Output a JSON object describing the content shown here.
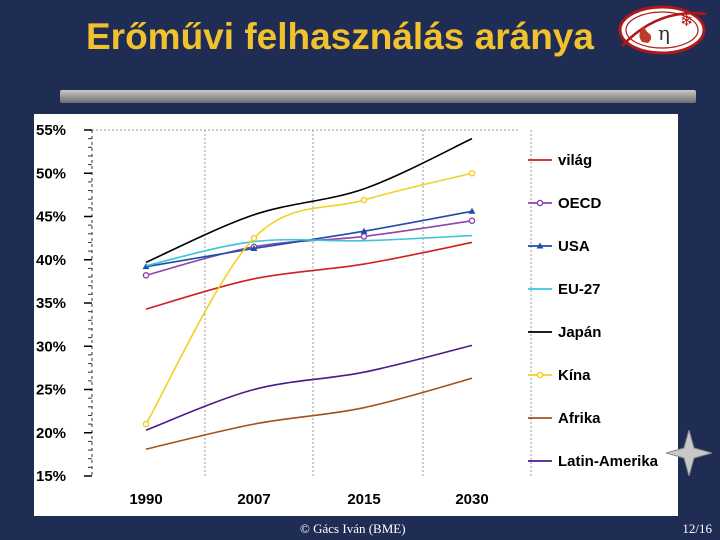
{
  "slide": {
    "title": "Erőművi felhasználás aránya",
    "footer": "© Gács Iván (BME)",
    "page_number": "12/16",
    "logo_glyph_1": "η",
    "logo_glyph_2": "❄"
  },
  "chart_data": {
    "type": "line",
    "x": [
      "1990",
      "2007",
      "2015",
      "2030"
    ],
    "ylim": [
      15,
      55
    ],
    "yticks": [
      "15%",
      "20%",
      "25%",
      "30%",
      "35%",
      "40%",
      "45%",
      "50%",
      "55%"
    ],
    "ytick_values": [
      15,
      20,
      25,
      30,
      35,
      40,
      45,
      50,
      55
    ],
    "grid": true,
    "legend_position": "right",
    "series": [
      {
        "name": "világ",
        "color": "#d21e1e",
        "marker": "none",
        "values": [
          34.3,
          37.8,
          39.5,
          42.0
        ]
      },
      {
        "name": "OECD",
        "color": "#8e44ad",
        "marker": "circle",
        "values": [
          38.2,
          41.5,
          42.7,
          44.5
        ]
      },
      {
        "name": "USA",
        "color": "#1f4ea8",
        "marker": "triangle",
        "values": [
          39.2,
          41.3,
          43.3,
          45.6
        ]
      },
      {
        "name": "EU-27",
        "color": "#3cc4d8",
        "marker": "none",
        "values": [
          39.3,
          42.1,
          42.2,
          42.8
        ]
      },
      {
        "name": "Japán",
        "color": "#000000",
        "marker": "none",
        "values": [
          39.7,
          45.2,
          48.2,
          54.0
        ]
      },
      {
        "name": "Kína",
        "color": "#f2d024",
        "marker": "circle",
        "values": [
          21.0,
          42.5,
          46.9,
          50.0
        ]
      },
      {
        "name": "Afrika",
        "color": "#a0521e",
        "marker": "none",
        "values": [
          18.1,
          21.0,
          22.9,
          26.3
        ]
      },
      {
        "name": "Latin-Amerika",
        "color": "#4b1a8c",
        "marker": "none",
        "values": [
          20.3,
          25.0,
          27.0,
          30.1
        ]
      }
    ]
  }
}
